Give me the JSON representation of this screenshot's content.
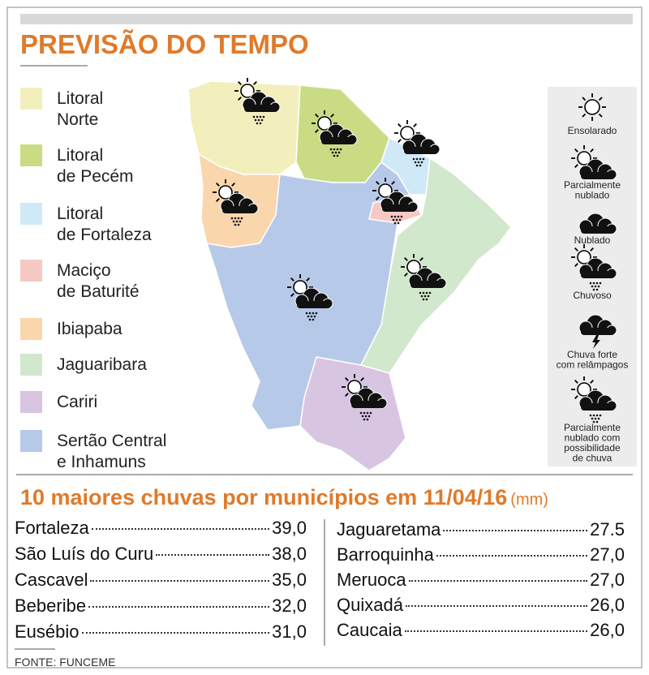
{
  "title": "PREVISÃO DO TEMPO",
  "regions": [
    {
      "lines": [
        "Litoral",
        "Norte"
      ],
      "color": "#f3efbd"
    },
    {
      "lines": [
        "Litoral",
        "de Pecém"
      ],
      "color": "#c9dc84"
    },
    {
      "lines": [
        "Litoral",
        "de Fortaleza"
      ],
      "color": "#cfe9f7"
    },
    {
      "lines": [
        "Maciço",
        "de Baturité"
      ],
      "color": "#f6c9c4"
    },
    {
      "lines": [
        "Ibiapaba"
      ],
      "color": "#f9d6ac"
    },
    {
      "lines": [
        "Jaguaribara"
      ],
      "color": "#d2e8cc"
    },
    {
      "lines": [
        "Cariri"
      ],
      "color": "#d8c5e2"
    },
    {
      "lines": [
        "Sertão Central",
        "e Inhamuns"
      ],
      "color": "#b7c9e8"
    }
  ],
  "icon_legend": [
    {
      "lines": [
        "Ensolarado"
      ]
    },
    {
      "lines": [
        "Parcialmente",
        "nublado"
      ]
    },
    {
      "lines": [
        "Nublado"
      ]
    },
    {
      "lines": [
        "Chuvoso"
      ]
    },
    {
      "lines": [
        "Chuva forte",
        "com relâmpagos"
      ]
    },
    {
      "lines": [
        "Parcialmente",
        "nublado com",
        "possibilidade",
        "de chuva"
      ]
    }
  ],
  "rain": {
    "heading": "10 maiores chuvas por municípios em 11/04/16",
    "unit": "(mm)",
    "left": [
      [
        "Fortaleza",
        "39,0"
      ],
      [
        "São Luís do Curu",
        "38,0"
      ],
      [
        "Cascavel",
        "35,0"
      ],
      [
        "Beberibe",
        "32,0"
      ],
      [
        "Eusébio",
        "31,0"
      ]
    ],
    "right": [
      [
        "Jaguaretama",
        "27.5"
      ],
      [
        "Barroquinha",
        "27,0"
      ],
      [
        "Meruoca",
        "27,0"
      ],
      [
        "Quixadá",
        "26,0"
      ],
      [
        "Caucaia",
        "26,0"
      ]
    ]
  },
  "source": "FONTE: FUNCEME"
}
